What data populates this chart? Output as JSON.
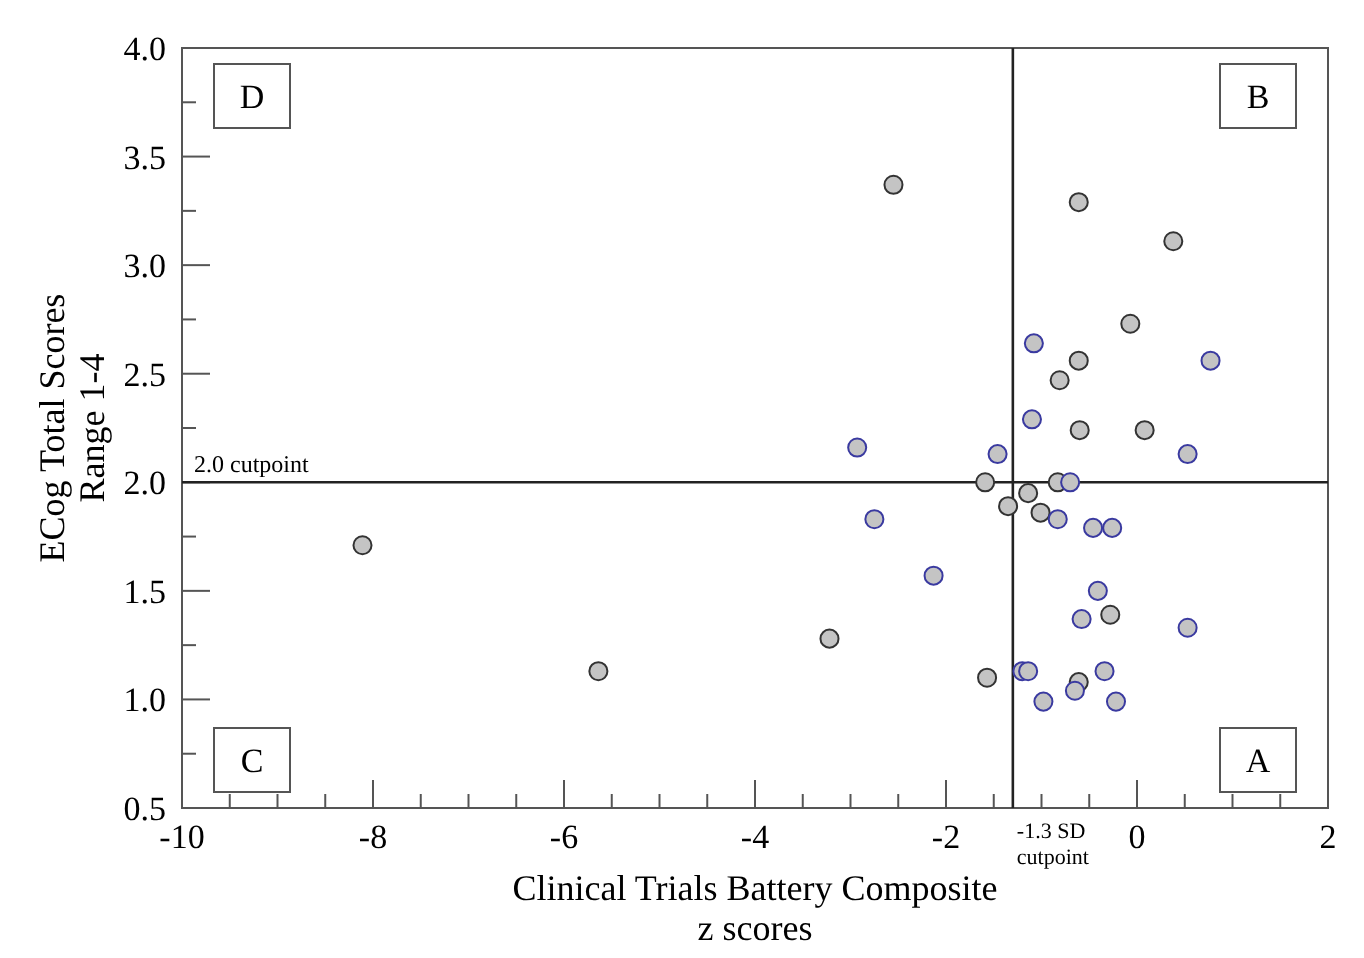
{
  "chart_data": {
    "type": "scatter",
    "xlabel": "Clinical Trials Battery Composite\nz scores",
    "ylabel": "ECog Total Scores\nRange 1-4",
    "xlim": [
      -10,
      2
    ],
    "ylim": [
      0.5,
      4
    ],
    "xticks": [
      -10,
      {
        "value": -9.5,
        "label": null
      },
      {
        "value": -9,
        "label": null
      },
      {
        "value": -8.5,
        "label": null
      },
      -8,
      {
        "value": -7.5,
        "label": null
      },
      {
        "value": -7,
        "label": null
      },
      {
        "value": -6.5,
        "label": null
      },
      -6,
      {
        "value": -5.5,
        "label": null
      },
      {
        "value": -5,
        "label": null
      },
      {
        "value": -4.5,
        "label": null
      },
      -4,
      {
        "value": -3.5,
        "label": null
      },
      {
        "value": -3,
        "label": null
      },
      {
        "value": -2.5,
        "label": null
      },
      -2,
      {
        "value": -1.5,
        "label": null
      },
      {
        "value": -1,
        "label": null
      },
      {
        "value": -0.5,
        "label": null
      },
      0,
      {
        "value": 0.5,
        "label": null
      },
      {
        "value": 1,
        "label": null
      },
      {
        "value": 1.5,
        "label": null
      },
      2
    ],
    "yticks": [
      0.5,
      {
        "value": 0.75,
        "label": null
      },
      {
        "value": 1,
        "label": "1.0"
      },
      {
        "value": 1.25,
        "label": null
      },
      1.5,
      {
        "value": 1.75,
        "label": null
      },
      {
        "value": 2,
        "label": "2.0"
      },
      {
        "value": 2.25,
        "label": null
      },
      2.5,
      {
        "value": 2.75,
        "label": null
      },
      {
        "value": 3,
        "label": "3.0"
      },
      {
        "value": 3.25,
        "label": null
      },
      3.5,
      {
        "value": 3.75,
        "label": null
      },
      {
        "value": 4,
        "label": "4.0"
      }
    ],
    "grid": false,
    "marker": "circle",
    "series": [
      {
        "color": "#333333",
        "x": [
          -2.55,
          -0.61,
          0.38,
          -0.07,
          -0.61,
          -0.81,
          -0.6,
          0.08,
          -1.59,
          -0.83,
          -1.14,
          -1.35,
          -1.01,
          -0.28,
          -8.11,
          -5.64,
          -3.22,
          -1.57,
          -0.61
        ],
        "values": [
          3.37,
          3.29,
          3.11,
          2.73,
          2.56,
          2.47,
          2.24,
          2.24,
          2.0,
          2.0,
          1.95,
          1.89,
          1.86,
          1.39,
          1.71,
          1.13,
          1.28,
          1.1,
          1.08
        ]
      },
      {
        "color": "#3a3aa0",
        "x": [
          -1.08,
          0.77,
          -1.1,
          -2.93,
          -1.46,
          0.53,
          -0.7,
          -0.83,
          -2.75,
          -0.46,
          -0.26,
          -2.13,
          -0.41,
          -0.58,
          0.53,
          -1.2,
          -1.14,
          -0.34,
          -0.98,
          -0.65,
          -0.22
        ],
        "values": [
          2.64,
          2.56,
          2.29,
          2.16,
          2.13,
          2.13,
          2.0,
          1.83,
          1.83,
          1.79,
          1.79,
          1.57,
          1.5,
          1.37,
          1.33,
          1.13,
          1.13,
          1.13,
          0.99,
          1.04,
          0.99
        ]
      }
    ],
    "ref_lines": [
      {
        "axis": "x",
        "value": -1.3,
        "label": "-1.3 SD\ncutpoint"
      },
      {
        "axis": "y",
        "value": 2,
        "label": "2.0 cutpoint"
      }
    ],
    "annotations": [
      "D",
      "B",
      "C",
      "A"
    ]
  }
}
